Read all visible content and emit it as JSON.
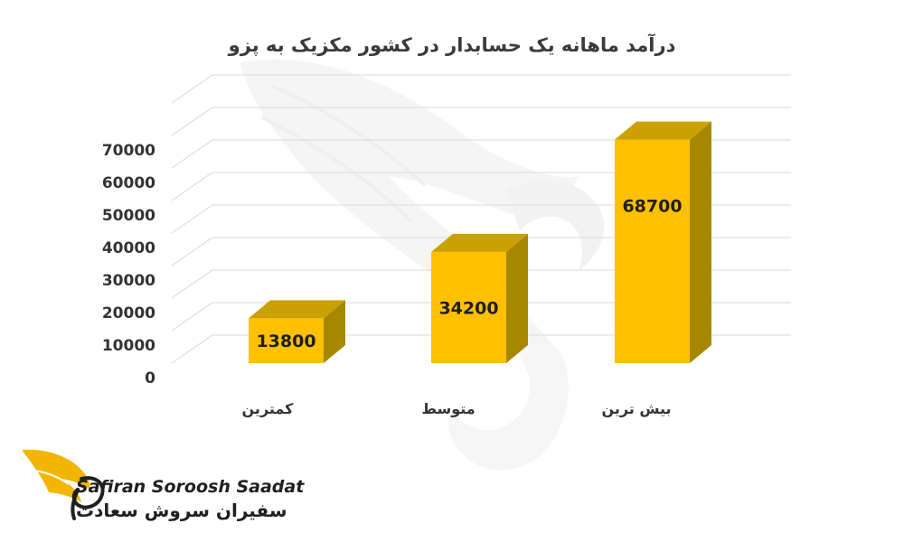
{
  "chart_data": {
    "type": "bar",
    "title": "درآمد ماهانه یک حسابدار در کشور مکزیک به پزو",
    "categories": [
      "کمترین",
      "متوسط",
      "بیش ترین"
    ],
    "values": [
      13800,
      34200,
      68700
    ],
    "data_labels": [
      "13800",
      "34200",
      "68700"
    ],
    "y_ticks": [
      "0",
      "10000",
      "20000",
      "30000",
      "40000",
      "50000",
      "60000",
      "70000"
    ],
    "ylim": [
      0,
      70000
    ],
    "grid": true,
    "style": "3d-column",
    "colors": {
      "front": "#FFC000",
      "top": "#C9A100",
      "side": "#A88700"
    }
  },
  "brand": {
    "name_en": "Safiran Soroosh Saadat",
    "name_fa": "سفیران سروش سعادت",
    "logo_icon": "wing-logo-icon",
    "watermark_icon": "wing-watermark-icon"
  }
}
